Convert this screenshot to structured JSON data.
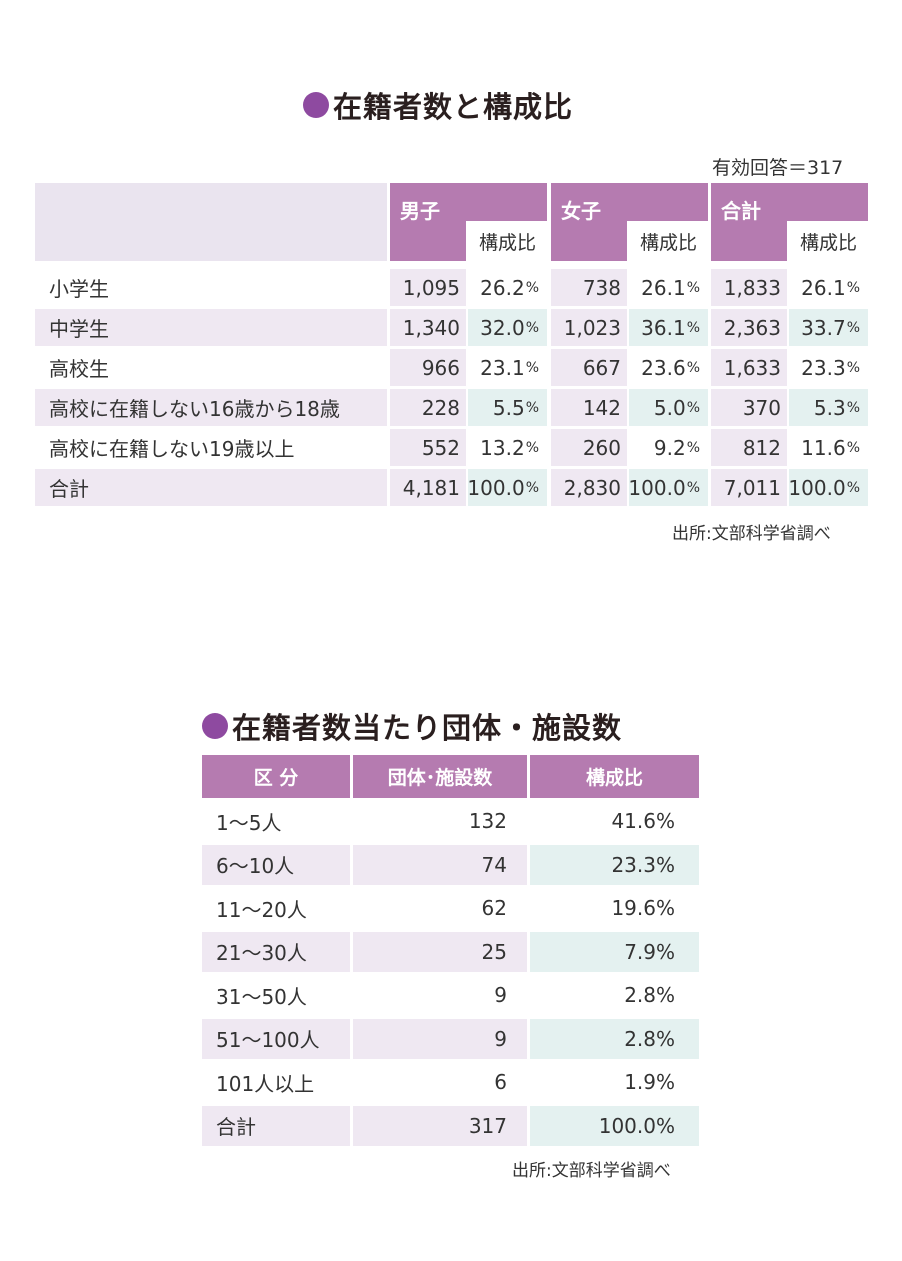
{
  "colors": {
    "accent": "#8e4aa0",
    "header": "#b57bb0",
    "lavender": "#efe8f2",
    "mint": "#e4f1f0"
  },
  "table1": {
    "title": "在籍者数と構成比",
    "note": "有効回答＝317",
    "groups": [
      "男子",
      "女子",
      "合計"
    ],
    "sub_header": "構成比",
    "rows": [
      {
        "label": "小学生",
        "vals": [
          "1,095",
          "26.2",
          "738",
          "26.1",
          "1,833",
          "26.1"
        ]
      },
      {
        "label": "中学生",
        "vals": [
          "1,340",
          "32.0",
          "1,023",
          "36.1",
          "2,363",
          "33.7"
        ]
      },
      {
        "label": "高校生",
        "vals": [
          "966",
          "23.1",
          "667",
          "23.6",
          "1,633",
          "23.3"
        ]
      },
      {
        "label": "高校に在籍しない16歳から18歳",
        "vals": [
          "228",
          "5.5",
          "142",
          "5.0",
          "370",
          "5.3"
        ]
      },
      {
        "label": "高校に在籍しない19歳以上",
        "vals": [
          "552",
          "13.2",
          "260",
          "9.2",
          "812",
          "11.6"
        ]
      },
      {
        "label": "合計",
        "vals": [
          "4,181",
          "100.0",
          "2,830",
          "100.0",
          "7,011",
          "100.0"
        ]
      }
    ],
    "pct_unit": "%",
    "source": "出所:文部科学省調べ"
  },
  "table2": {
    "title": "在籍者数当たり団体・施設数",
    "headers": [
      "区 分",
      "団体･施設数",
      "構成比"
    ],
    "rows": [
      {
        "label": "1〜5人",
        "count": "132",
        "pct": "41.6%"
      },
      {
        "label": "6〜10人",
        "count": "74",
        "pct": "23.3%"
      },
      {
        "label": "11〜20人",
        "count": "62",
        "pct": "19.6%"
      },
      {
        "label": "21〜30人",
        "count": "25",
        "pct": "7.9%"
      },
      {
        "label": "31〜50人",
        "count": "9",
        "pct": "2.8%"
      },
      {
        "label": "51〜100人",
        "count": "9",
        "pct": "2.8%"
      },
      {
        "label": "101人以上",
        "count": "6",
        "pct": "1.9%"
      },
      {
        "label": "合計",
        "count": "317",
        "pct": "100.0%"
      }
    ],
    "source": "出所:文部科学省調べ"
  }
}
